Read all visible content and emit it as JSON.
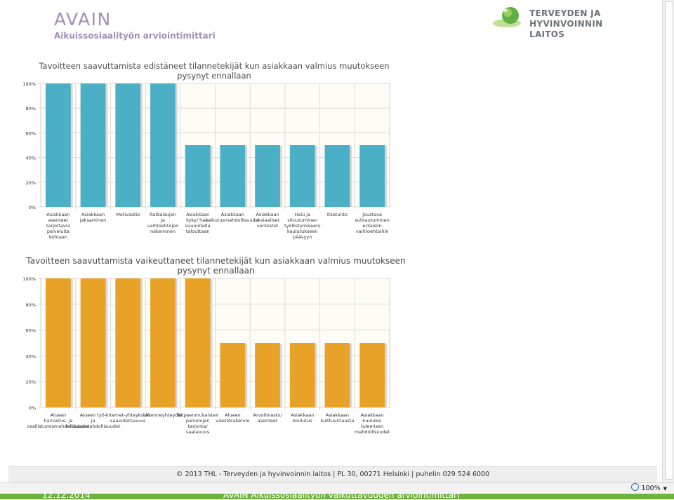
{
  "header": {
    "title": "AVAIN",
    "subtitle": "Aikuissosiaalityön arviointimittari",
    "logo_line1": "TERVEYDEN JA",
    "logo_line2": "HYVINVOINNIN LAITOS"
  },
  "colors": {
    "brand_purple": "#9e8fb8",
    "bar_blue": "#4bb0c6",
    "bar_orange": "#e9a228",
    "logo_green": "#5db044",
    "bottom_band": "#6fb33e"
  },
  "footer": {
    "text": "© 2013 THL  -  Terveyden ja hyvinvoinnin laitos  |  PL 30, 00271 Helsinki  |  puhelin 029 524 6000"
  },
  "statusbar": {
    "zoom": "100%"
  },
  "bottom": {
    "date": "12.12.2014",
    "caption": "AVAIN Aikuissosiaalityön vaikuttavuuden arviointimittari"
  },
  "chart_data": [
    {
      "type": "bar",
      "title": "Tavoitteen saavuttamista edistäneet tilannetekijät kun asiakkaan valmius muutokseen pysynyt ennallaan",
      "categories": [
        "Asiakkaan asenteet tarjottavia palveluita kohtaan",
        "Asiakkaan jaksaminen",
        "Motivaatio",
        "Ratkaisujen ja vaihtoehtojen näkeminen",
        "Asiakkaan kyky/ halu suunnitella talouttaan",
        "Asiakkaan vaikutusmahdollisuudet",
        "Asiakkaan sosiaaliset verkostot",
        "Halu ja sitoutuminen työllistymiseen/ koulutukseen pääsyyn",
        "Itsetunto",
        "Joustava suhtautuminen erilaisiin vaihtoehtoihin"
      ],
      "values": [
        100,
        100,
        100,
        100,
        50,
        50,
        50,
        50,
        50,
        50
      ],
      "yticks": [
        "0%",
        "20%",
        "40%",
        "60%",
        "80%",
        "100%"
      ],
      "ylim": [
        0,
        100
      ],
      "color": "#4bb0c6",
      "grid": true
    },
    {
      "type": "bar",
      "title": "Tavoitteen saavuttamista vaikeuttaneet tilannetekijät kun asiakkaan valmius muutokseen pysynyt ennallaan",
      "categories": [
        "Alueen harrastus- ja osallistumismahdollisuudet",
        "Alueen työ- ja koulutusmahdollisuudet",
        "Internet-yhteyksien saavutettavuus",
        "Liikenneyhteydet",
        "Tarpeenmukaisten palvelujen tarjonta/ saatavuus",
        "Alueen väestörakenne",
        "Arvoilmasto/ asenteet",
        "Asiakkaan koulutus",
        "Asiakkaan kulttuuritausta",
        "Asiakkaan kuuluksi tulemisen mahdollisuudet"
      ],
      "values": [
        100,
        100,
        100,
        100,
        100,
        50,
        50,
        50,
        50,
        50
      ],
      "yticks": [
        "0%",
        "20%",
        "40%",
        "60%",
        "80%",
        "100%"
      ],
      "ylim": [
        0,
        100
      ],
      "color": "#e9a228",
      "grid": true
    }
  ]
}
